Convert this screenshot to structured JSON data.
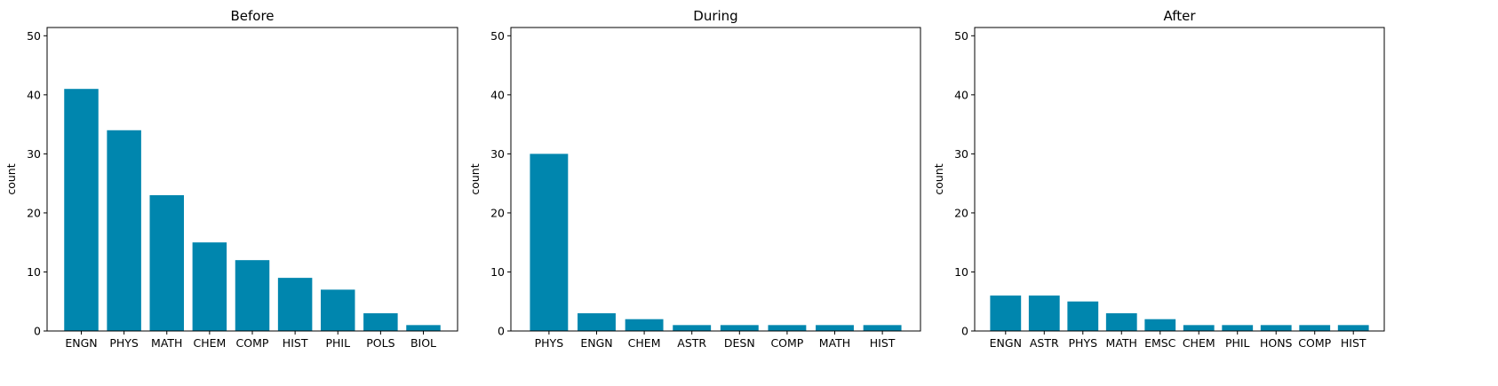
{
  "colors": {
    "bar": "#0086ae",
    "axis": "#000000",
    "background": "#ffffff"
  },
  "chart_data": [
    {
      "type": "bar",
      "title": "Before",
      "xlabel": "",
      "ylabel": "count",
      "ylim": [
        0,
        51.4
      ],
      "yticks": [
        0,
        10,
        20,
        30,
        40,
        50
      ],
      "categories": [
        "ENGN",
        "PHYS",
        "MATH",
        "CHEM",
        "COMP",
        "HIST",
        "PHIL",
        "POLS",
        "BIOL"
      ],
      "values": [
        41,
        34,
        23,
        15,
        12,
        9,
        7,
        3,
        1
      ],
      "grid": false
    },
    {
      "type": "bar",
      "title": "During",
      "xlabel": "",
      "ylabel": "count",
      "ylim": [
        0,
        51.4
      ],
      "yticks": [
        0,
        10,
        20,
        30,
        40,
        50
      ],
      "categories": [
        "PHYS",
        "ENGN",
        "CHEM",
        "ASTR",
        "DESN",
        "COMP",
        "MATH",
        "HIST"
      ],
      "values": [
        30,
        3,
        2,
        1,
        1,
        1,
        1,
        1
      ],
      "grid": false
    },
    {
      "type": "bar",
      "title": "After",
      "xlabel": "",
      "ylabel": "count",
      "ylim": [
        0,
        51.4
      ],
      "yticks": [
        0,
        10,
        20,
        30,
        40,
        50
      ],
      "categories": [
        "ENGN",
        "ASTR",
        "PHYS",
        "MATH",
        "EMSC",
        "CHEM",
        "PHIL",
        "HONS",
        "COMP",
        "HIST"
      ],
      "values": [
        6,
        6,
        5,
        3,
        2,
        1,
        1,
        1,
        1,
        1
      ],
      "grid": false
    }
  ]
}
